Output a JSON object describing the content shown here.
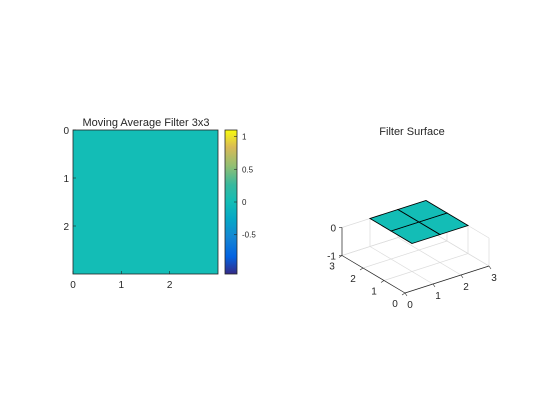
{
  "colors": {
    "image_fill": "#13bdb6",
    "surface_fill": "#13bdb6",
    "axis_color": "#262626",
    "grid_color": "#dcdcdc",
    "background": "#ffffff"
  },
  "chart_data": [
    {
      "type": "heatmap",
      "title": "Moving Average Filter 3x3",
      "x_ticks": [
        "0",
        "1",
        "2"
      ],
      "y_ticks": [
        "0",
        "1",
        "2"
      ],
      "xlim": [
        0,
        3
      ],
      "ylim": [
        0,
        3
      ],
      "y_reversed": true,
      "grid": false,
      "values": [
        [
          0,
          0,
          0
        ],
        [
          0,
          0,
          0
        ],
        [
          0,
          0,
          0
        ]
      ],
      "colorbar": {
        "colormap": "parula",
        "range": [
          -1.1,
          1.1
        ],
        "ticks": [
          "1",
          "0.5",
          "0",
          "-0.5"
        ],
        "tick_values": [
          1,
          0.5,
          0,
          -0.5
        ],
        "placement": "right"
      }
    },
    {
      "type": "surface",
      "title": "Filter Surface",
      "x_ticks": [
        "0",
        "1",
        "2",
        "3"
      ],
      "y_ticks": [
        "0",
        "1",
        "2",
        "3"
      ],
      "z_ticks": [
        "0",
        "-1"
      ],
      "xlim": [
        0,
        3
      ],
      "ylim": [
        0,
        3
      ],
      "zlim": [
        -1,
        0
      ],
      "grid": true,
      "x": [
        1,
        2,
        3
      ],
      "y": [
        1,
        2,
        3
      ],
      "z": [
        [
          0,
          0,
          0
        ],
        [
          0,
          0,
          0
        ],
        [
          0,
          0,
          0
        ]
      ]
    }
  ]
}
